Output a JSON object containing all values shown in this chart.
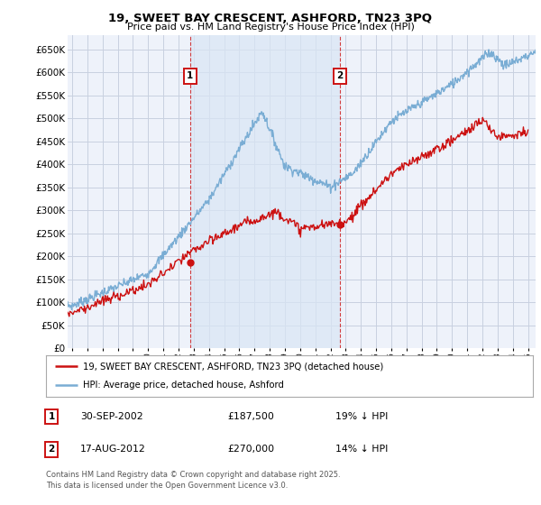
{
  "title": "19, SWEET BAY CRESCENT, ASHFORD, TN23 3PQ",
  "subtitle": "Price paid vs. HM Land Registry's House Price Index (HPI)",
  "ylim": [
    0,
    680000
  ],
  "yticks": [
    0,
    50000,
    100000,
    150000,
    200000,
    250000,
    300000,
    350000,
    400000,
    450000,
    500000,
    550000,
    600000,
    650000
  ],
  "xlim_start": 1994.7,
  "xlim_end": 2025.5,
  "xticks": [
    1995,
    1996,
    1997,
    1998,
    1999,
    2000,
    2001,
    2002,
    2003,
    2004,
    2005,
    2006,
    2007,
    2008,
    2009,
    2010,
    2011,
    2012,
    2013,
    2014,
    2015,
    2016,
    2017,
    2018,
    2019,
    2020,
    2021,
    2022,
    2023,
    2024,
    2025
  ],
  "grid_color": "#c8d0e0",
  "hpi_color": "#7aadd4",
  "price_color": "#cc1111",
  "shade_color": "#dae6f5",
  "marker1_x": 2002.75,
  "marker1_y": 187500,
  "marker1_label": "1",
  "marker2_x": 2012.62,
  "marker2_y": 270000,
  "marker2_label": "2",
  "legend_line1": "19, SWEET BAY CRESCENT, ASHFORD, TN23 3PQ (detached house)",
  "legend_line2": "HPI: Average price, detached house, Ashford",
  "table_rows": [
    {
      "num": "1",
      "date": "30-SEP-2002",
      "price": "£187,500",
      "note": "19% ↓ HPI"
    },
    {
      "num": "2",
      "date": "17-AUG-2012",
      "price": "£270,000",
      "note": "14% ↓ HPI"
    }
  ],
  "footnote": "Contains HM Land Registry data © Crown copyright and database right 2025.\nThis data is licensed under the Open Government Licence v3.0.",
  "background_color": "#ffffff",
  "plot_bg_color": "#eef2fa"
}
